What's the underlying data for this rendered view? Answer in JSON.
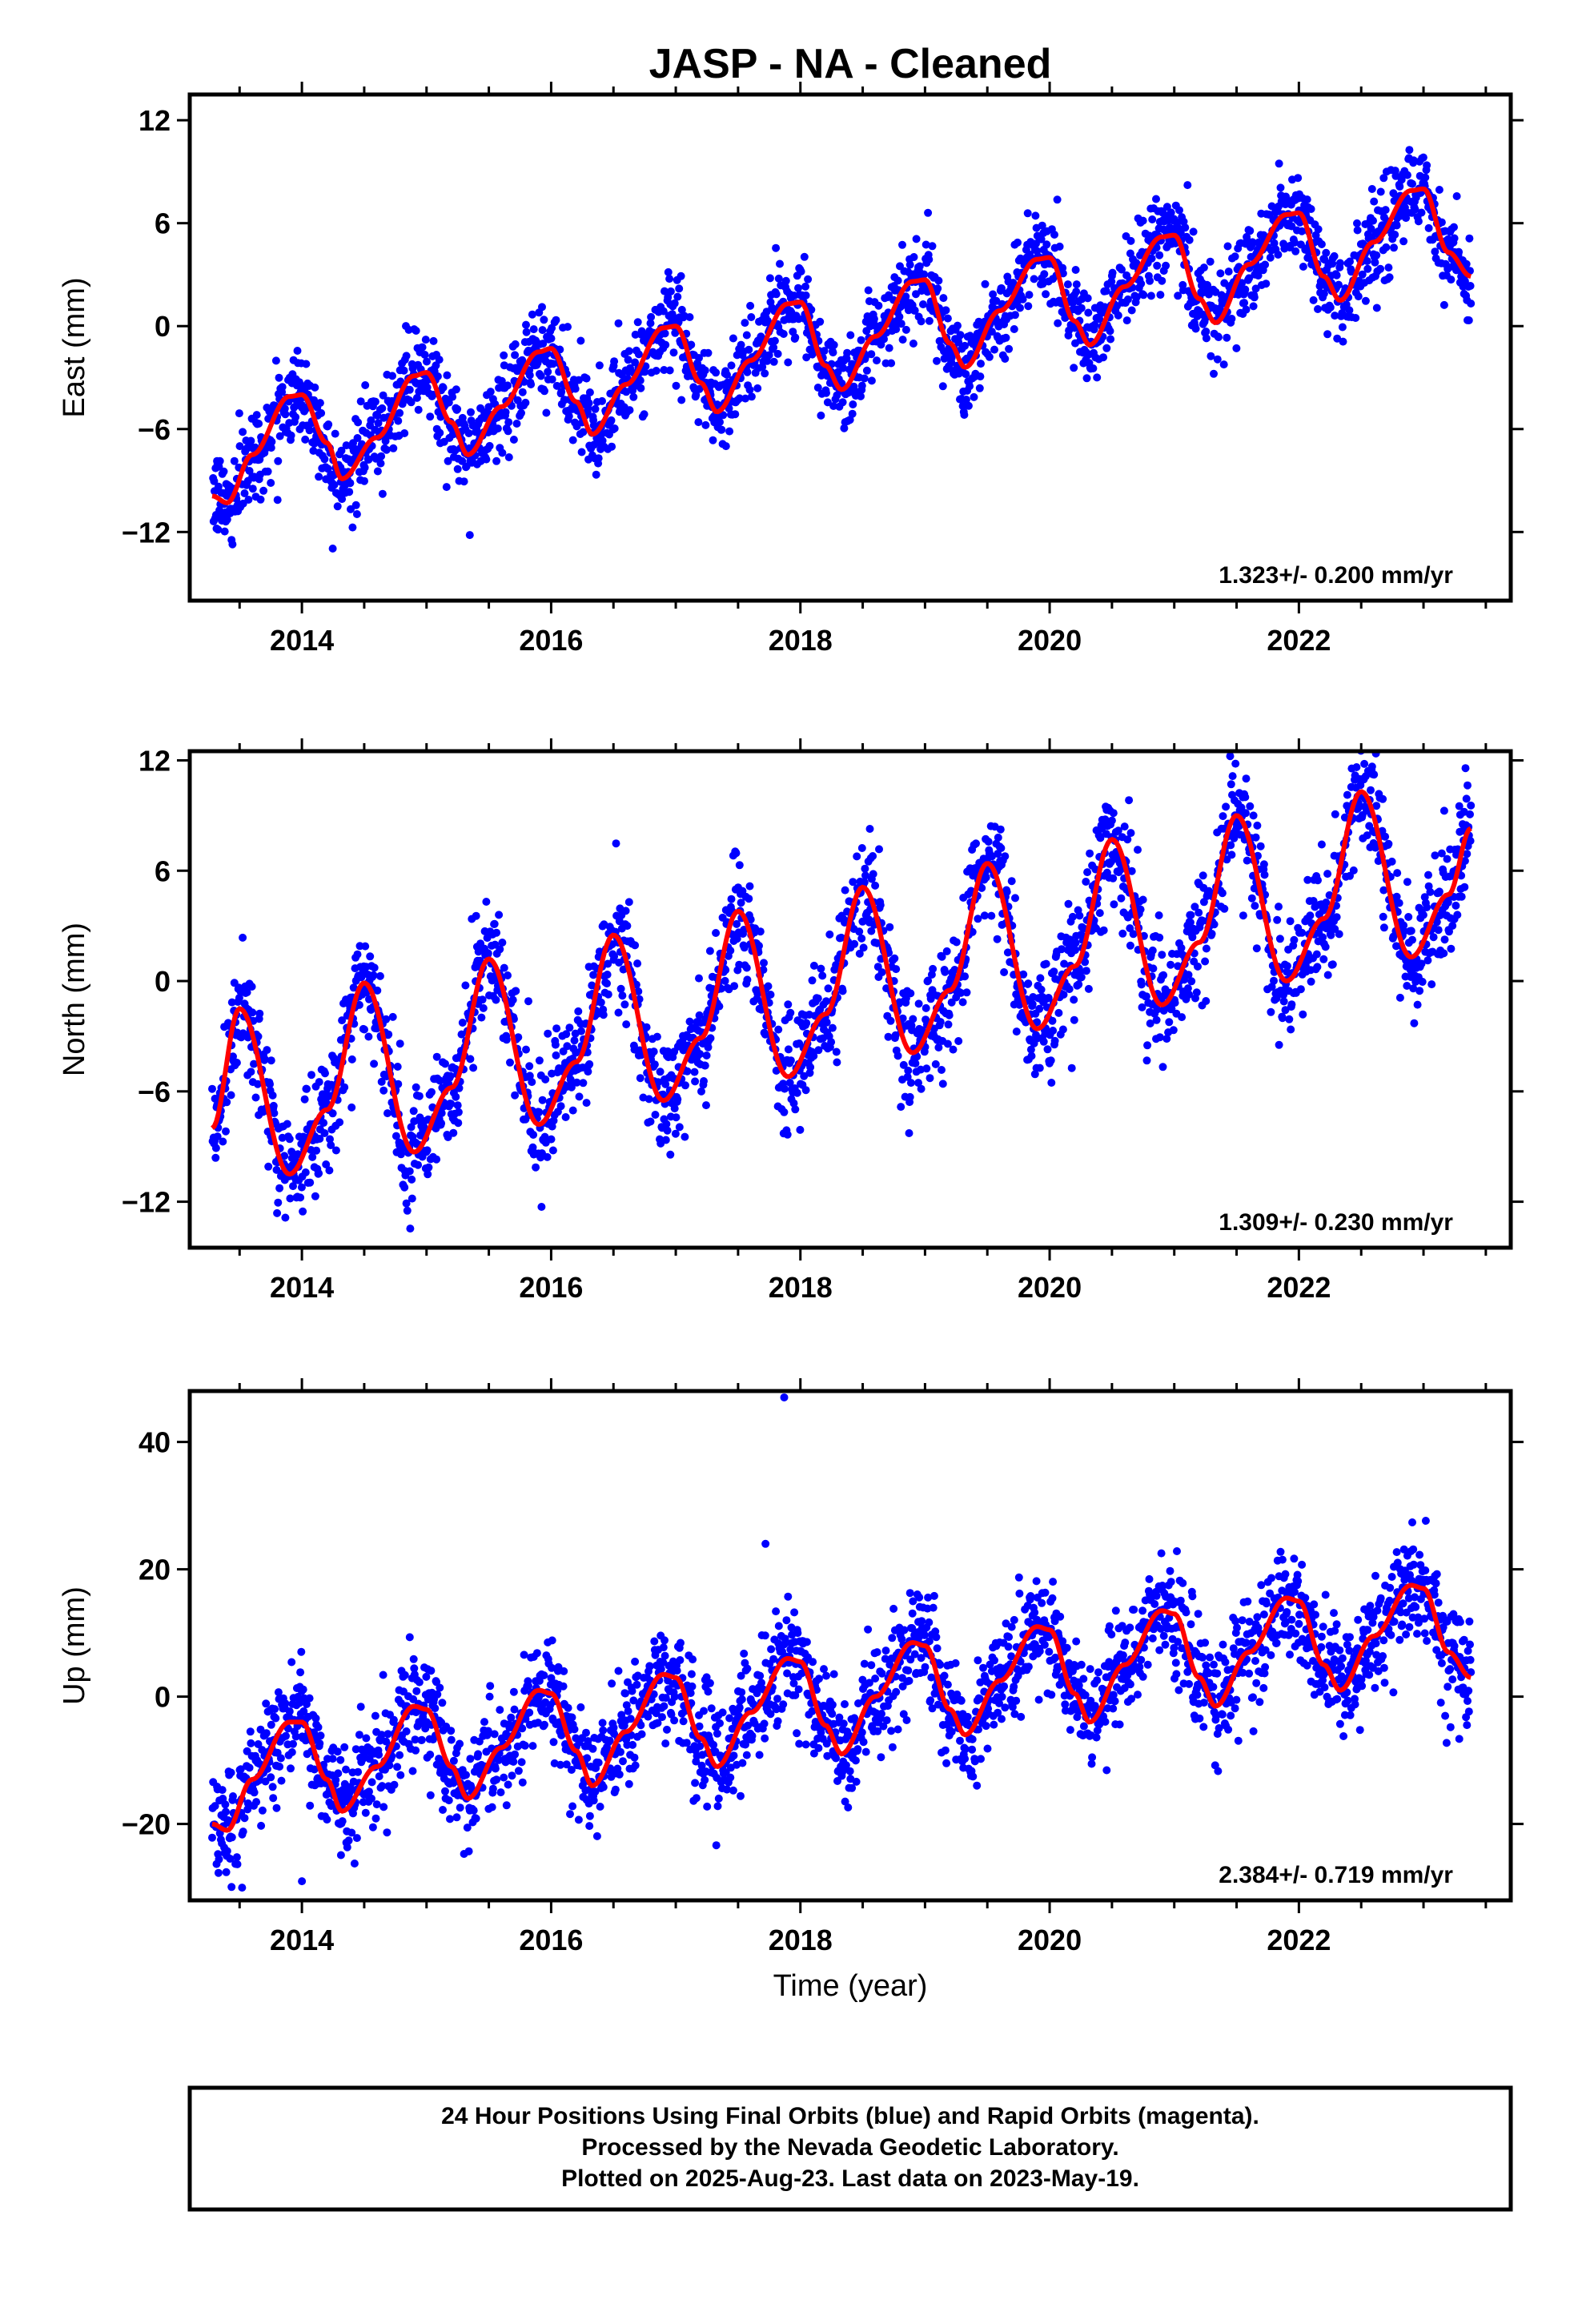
{
  "title": "JASP  - NA - Cleaned",
  "colors": {
    "points": "#0000ff",
    "fit": "#ff0000",
    "frame": "#000000"
  },
  "chart_data": [
    {
      "type": "scatter",
      "ylabel": "East (mm)",
      "xlim": [
        2013.1,
        2023.7
      ],
      "ylim": [
        -16,
        13.5
      ],
      "yticks": [
        -12,
        -6,
        0,
        6,
        12
      ],
      "yticklabels": [
        "−12",
        "−6",
        "0",
        "6",
        "12"
      ],
      "xticks": [
        2014,
        2016,
        2018,
        2020,
        2022
      ],
      "xticklabels": [
        "2014",
        "2016",
        "2018",
        "2020",
        "2022"
      ],
      "rate_label": "1.323+/- 0.200 mm/yr",
      "fit": {
        "x": [
          2013.28,
          2013.4,
          2013.6,
          2013.9,
          2014.0,
          2014.2,
          2014.32,
          2014.6,
          2014.9,
          2015.0,
          2015.2,
          2015.33,
          2015.6,
          2015.9,
          2016.0,
          2016.2,
          2016.33,
          2016.6,
          2016.9,
          2017.0,
          2017.2,
          2017.33,
          2017.6,
          2017.9,
          2018.0,
          2018.2,
          2018.33,
          2018.6,
          2018.9,
          2019.0,
          2019.2,
          2019.32,
          2019.6,
          2019.9,
          2020.0,
          2020.2,
          2020.32,
          2020.6,
          2020.9,
          2021.0,
          2021.2,
          2021.33,
          2021.6,
          2021.9,
          2022.0,
          2022.2,
          2022.33,
          2022.6,
          2022.9,
          2023.0,
          2023.2,
          2023.38
        ],
        "y": [
          -9.9,
          -10.3,
          -7.5,
          -4.1,
          -4.0,
          -6.8,
          -8.9,
          -6.5,
          -2.9,
          -2.7,
          -5.6,
          -7.5,
          -4.7,
          -1.5,
          -1.3,
          -4.4,
          -6.3,
          -3.4,
          -0.1,
          0.0,
          -3.3,
          -5.0,
          -2.0,
          1.3,
          1.4,
          -2.3,
          -3.7,
          -0.6,
          2.6,
          2.7,
          -1.0,
          -2.4,
          0.9,
          3.9,
          4.0,
          0.3,
          -1.1,
          2.3,
          5.2,
          5.3,
          1.6,
          0.2,
          3.6,
          6.5,
          6.6,
          2.9,
          1.5,
          4.9,
          7.9,
          8.0,
          4.3,
          2.9
        ]
      },
      "trend": {
        "slope": 1.323,
        "intercept_at_2013_3": -7.0,
        "seasonal_amplitude": 3.2,
        "noise_sd": 1.3,
        "n_points": 2600
      }
    },
    {
      "type": "scatter",
      "ylabel": "North (mm)",
      "xlim": [
        2013.1,
        2023.7
      ],
      "ylim": [
        -14.5,
        12.5
      ],
      "yticks": [
        -12,
        -6,
        0,
        6,
        12
      ],
      "yticklabels": [
        "−12",
        "−6",
        "0",
        "6",
        "12"
      ],
      "xticks": [
        2014,
        2016,
        2018,
        2020,
        2022
      ],
      "xticklabels": [
        "2014",
        "2016",
        "2018",
        "2020",
        "2022"
      ],
      "rate_label": "1.309+/- 0.230 mm/yr",
      "fit": {
        "x": [
          2013.28,
          2013.5,
          2013.9,
          2014.2,
          2014.5,
          2014.9,
          2015.2,
          2015.5,
          2015.9,
          2016.2,
          2016.5,
          2016.9,
          2017.2,
          2017.5,
          2017.9,
          2018.2,
          2018.5,
          2018.9,
          2019.2,
          2019.5,
          2019.9,
          2020.2,
          2020.5,
          2020.9,
          2021.2,
          2021.5,
          2021.9,
          2022.2,
          2022.5,
          2022.9,
          2023.2,
          2023.38
        ],
        "y": [
          -8.0,
          -1.5,
          -10.5,
          -7.0,
          -0.1,
          -9.3,
          -5.8,
          1.2,
          -7.8,
          -4.4,
          2.5,
          -6.5,
          -3.1,
          3.8,
          -5.2,
          -1.8,
          5.1,
          -3.9,
          -0.5,
          6.4,
          -2.6,
          0.8,
          7.7,
          -1.3,
          2.1,
          9.0,
          0.0,
          3.4,
          10.3,
          1.3,
          4.7,
          8.3
        ]
      },
      "trend": {
        "slope": 1.309,
        "intercept_at_2013_3": -6.0,
        "seasonal_amplitude": 4.5,
        "noise_sd": 1.6,
        "n_points": 2600
      }
    },
    {
      "type": "scatter",
      "ylabel": "Up (mm)",
      "xlabel": "Time (year)",
      "xlim": [
        2013.1,
        2023.7
      ],
      "ylim": [
        -32,
        48
      ],
      "yticks": [
        -20,
        0,
        20,
        40
      ],
      "yticklabels": [
        "−20",
        "0",
        "20",
        "40"
      ],
      "xticks": [
        2014,
        2016,
        2018,
        2020,
        2022
      ],
      "xticklabels": [
        "2014",
        "2016",
        "2018",
        "2020",
        "2022"
      ],
      "rate_label": "2.384+/- 0.719 mm/yr",
      "fit": {
        "x": [
          2013.28,
          2013.4,
          2013.6,
          2013.9,
          2014.0,
          2014.2,
          2014.32,
          2014.6,
          2014.9,
          2015.0,
          2015.2,
          2015.33,
          2015.6,
          2015.9,
          2016.0,
          2016.2,
          2016.33,
          2016.6,
          2016.9,
          2017.0,
          2017.2,
          2017.33,
          2017.6,
          2017.9,
          2018.0,
          2018.2,
          2018.33,
          2018.6,
          2018.9,
          2019.0,
          2019.2,
          2019.32,
          2019.6,
          2019.9,
          2020.0,
          2020.2,
          2020.32,
          2020.6,
          2020.9,
          2021.0,
          2021.2,
          2021.33,
          2021.6,
          2021.9,
          2022.0,
          2022.2,
          2022.33,
          2022.6,
          2022.9,
          2023.0,
          2023.2,
          2023.38
        ],
        "y": [
          -20.0,
          -21.0,
          -13.0,
          -4.0,
          -4.0,
          -13.0,
          -18.0,
          -11.0,
          -1.5,
          -2.0,
          -11.0,
          -16.0,
          -8.0,
          1.0,
          0.5,
          -8.5,
          -14.0,
          -5.5,
          3.5,
          3.0,
          -6.5,
          -11.0,
          -2.5,
          6.0,
          5.5,
          -4.5,
          -9.0,
          0.0,
          8.5,
          8.0,
          -2.0,
          -6.0,
          2.5,
          11.0,
          10.5,
          0.5,
          -4.0,
          5.0,
          13.5,
          13.0,
          3.0,
          -1.5,
          7.0,
          15.5,
          15.0,
          5.0,
          1.0,
          9.5,
          17.5,
          17.0,
          7.0,
          3.0
        ]
      },
      "trend": {
        "slope": 2.384,
        "intercept_at_2013_3": -12.0,
        "seasonal_amplitude": 8.5,
        "noise_sd": 4.2,
        "n_points": 2600
      },
      "outliers": [
        {
          "x": 2017.87,
          "y": 47
        },
        {
          "x": 2017.72,
          "y": 24
        },
        {
          "x": 2013.52,
          "y": -30
        },
        {
          "x": 2014.0,
          "y": -29
        }
      ]
    }
  ],
  "footer": {
    "lines": [
      "24 Hour Positions Using Final Orbits (blue) and Rapid Orbits (magenta).",
      "Processed by the Nevada Geodetic Laboratory.",
      "Plotted on 2025-Aug-23. Last data on 2023-May-19."
    ]
  }
}
